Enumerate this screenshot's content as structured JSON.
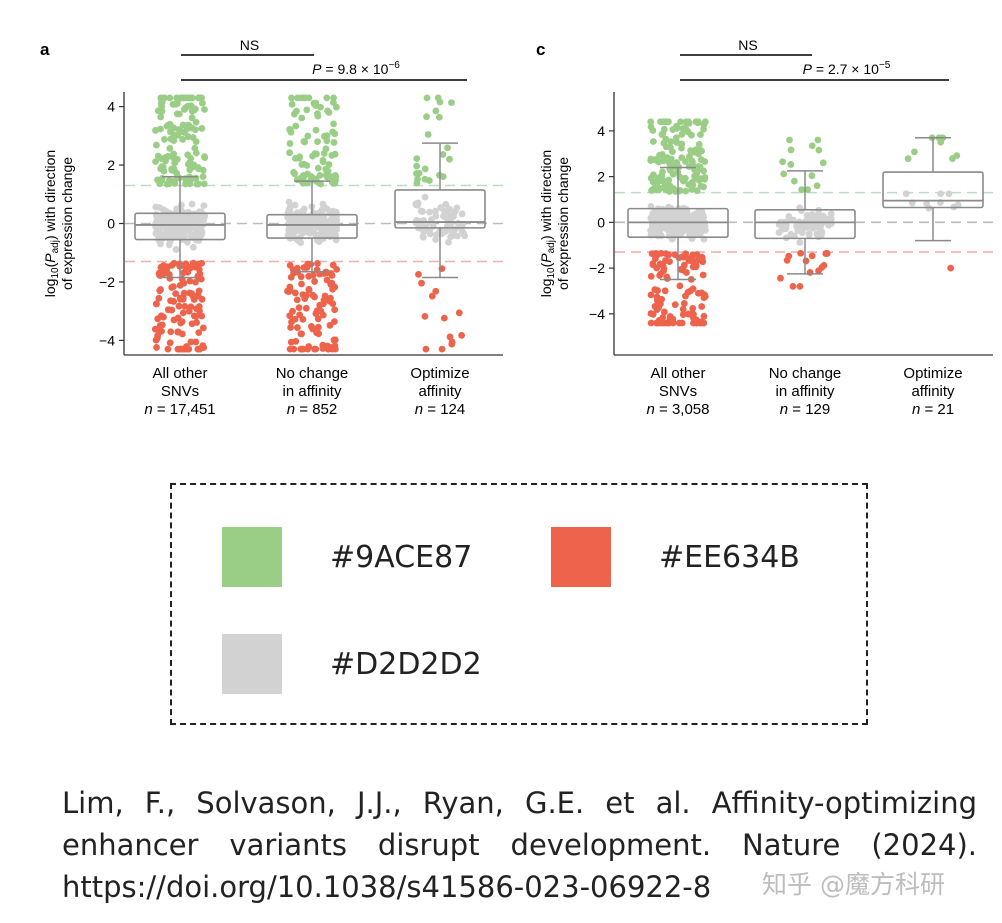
{
  "chart_data": [
    {
      "panel": "a",
      "type": "box_strip",
      "ylabel_parts": [
        "log",
        "10",
        "(",
        "P",
        "adj",
        ") with direction",
        "of expression change"
      ],
      "ylim": [
        -4.5,
        4.5
      ],
      "yticks": [
        -4,
        -2,
        0,
        2,
        4
      ],
      "threshold_pos": 1.3,
      "threshold_neg": -1.3,
      "categories": [
        {
          "label_lines": [
            "All other",
            "SNVs"
          ],
          "n_prefix": "n",
          "n_value": " = 17,451",
          "box": {
            "q1": -0.55,
            "median": -0.05,
            "q3": 0.35,
            "whisker_low": -1.85,
            "whisker_high": 1.6
          },
          "points": {
            "green": 130,
            "red": 120,
            "gray": 260,
            "max": 4.3,
            "min": -4.3
          }
        },
        {
          "label_lines": [
            "No change",
            "in affinity"
          ],
          "n_prefix": "n",
          "n_value": " = 852",
          "box": {
            "q1": -0.5,
            "median": -0.05,
            "q3": 0.3,
            "whisker_low": -1.65,
            "whisker_high": 1.45
          },
          "points": {
            "green": 90,
            "red": 100,
            "gray": 220,
            "max": 4.3,
            "min": -4.3
          }
        },
        {
          "label_lines": [
            "Optimize",
            "affinity"
          ],
          "n_prefix": "n",
          "n_value": " = 124",
          "box": {
            "q1": -0.15,
            "median": 0.05,
            "q3": 1.15,
            "whisker_low": -1.85,
            "whisker_high": 2.75
          },
          "points": {
            "green": 22,
            "red": 14,
            "gray": 70,
            "max": 4.3,
            "min": -4.3
          }
        }
      ],
      "comparisons": [
        {
          "from": 0,
          "to": 1,
          "text": "NS"
        },
        {
          "from": 0,
          "to": 2,
          "p_prefix": "P",
          "p_value": " = 9.8 × 10",
          "p_exp": "−6"
        }
      ]
    },
    {
      "panel": "c",
      "type": "box_strip",
      "ylabel_parts": [
        "log",
        "10",
        "(",
        "P",
        "adj",
        ") with direction",
        "of expression change"
      ],
      "ylim": [
        -5.8,
        5.7
      ],
      "yticks": [
        -4,
        -2,
        0,
        2,
        4
      ],
      "threshold_pos": 1.3,
      "threshold_neg": -1.3,
      "categories": [
        {
          "label_lines": [
            "All other",
            "SNVs"
          ],
          "n_prefix": "n",
          "n_value": " = 3,058",
          "box": {
            "q1": -0.65,
            "median": 0.0,
            "q3": 0.6,
            "whisker_low": -2.5,
            "whisker_high": 2.4
          },
          "points": {
            "green": 140,
            "red": 110,
            "gray": 260,
            "max": 4.4,
            "min": -4.4
          }
        },
        {
          "label_lines": [
            "No change",
            "in affinity"
          ],
          "n_prefix": "n",
          "n_value": " = 129",
          "box": {
            "q1": -0.7,
            "median": 0.0,
            "q3": 0.55,
            "whisker_low": -2.25,
            "whisker_high": 2.25
          },
          "points": {
            "green": 14,
            "red": 14,
            "gray": 70,
            "max": 3.6,
            "min": -2.8
          }
        },
        {
          "label_lines": [
            "Optimize",
            "affinity"
          ],
          "n_prefix": "n",
          "n_value": " = 21",
          "box": {
            "q1": 0.65,
            "median": 0.95,
            "q3": 2.2,
            "whisker_low": -0.8,
            "whisker_high": 3.7
          },
          "points": {
            "green": 8,
            "red": 1,
            "gray": 9,
            "max": 3.7,
            "min": -2.0
          }
        }
      ],
      "comparisons": [
        {
          "from": 0,
          "to": 1,
          "text": "NS"
        },
        {
          "from": 0,
          "to": 2,
          "p_prefix": "P",
          "p_value": " = 2.7 × 10",
          "p_exp": "−5"
        }
      ]
    }
  ],
  "colors": {
    "green": "#9ACE87",
    "red": "#EE634B",
    "gray": "#D2D2D2",
    "box_stroke": "#8a8a8a",
    "axis": "#333333",
    "threshold_green": "#b9dcc4",
    "threshold_red": "#f2b0b0",
    "zero_line": "#bbbbbb"
  },
  "legend": {
    "items": [
      {
        "color": "#9ACE87",
        "label": "#9ACE87"
      },
      {
        "color": "#EE634B",
        "label": "#EE634B"
      },
      {
        "color": "#D2D2D2",
        "label": "#D2D2D2"
      }
    ]
  },
  "citation": {
    "text": "Lim, F., Solvason, J.J., Ryan, G.E. et al. Affinity-optimizing enhancer variants disrupt development. Nature (2024). https://doi.org/10.1038/s41586-023-06922-8"
  },
  "watermark": {
    "text": "知乎 @魔方科研"
  }
}
